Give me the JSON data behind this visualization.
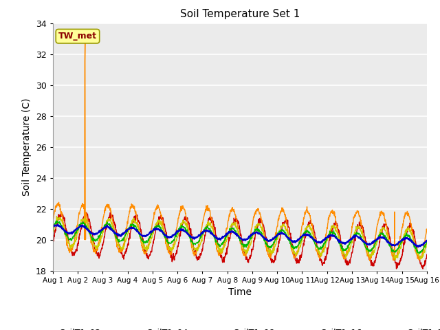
{
  "title": "Soil Temperature Set 1",
  "xlabel": "Time",
  "ylabel": "Soil Temperature (C)",
  "ylim": [
    18,
    34
  ],
  "yticks": [
    18,
    20,
    22,
    24,
    26,
    28,
    30,
    32,
    34
  ],
  "xlim": [
    0,
    15
  ],
  "xtick_labels": [
    "Aug 1",
    "Aug 2",
    "Aug 3",
    "Aug 4",
    "Aug 5",
    "Aug 6",
    "Aug 7",
    "Aug 8",
    "Aug 9",
    "Aug 10",
    "Aug 11",
    "Aug 12",
    "Aug 13",
    "Aug 14",
    "Aug 15",
    "Aug 16"
  ],
  "annotation_text": "TW_met",
  "annotation_color": "#8B0000",
  "annotation_bg": "#FFFF99",
  "bg_color": "#EBEBEB",
  "series": {
    "SoilT1_02": {
      "color": "#CC0000",
      "lw": 1.0
    },
    "SoilT1_04": {
      "color": "#FF8C00",
      "lw": 1.0
    },
    "SoilT1_08": {
      "color": "#CCCC00",
      "lw": 1.0
    },
    "SoilT1_16": {
      "color": "#00BB00",
      "lw": 1.0
    },
    "SoilT1_32": {
      "color": "#0000CC",
      "lw": 1.5
    }
  }
}
